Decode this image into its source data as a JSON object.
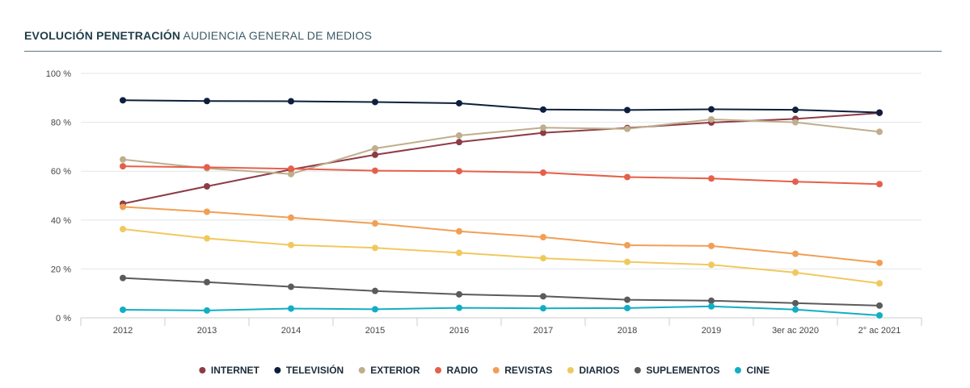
{
  "header": {
    "title_bold": "EVOLUCIÓN PENETRACIÓN",
    "title_light": "AUDIENCIA GENERAL DE MEDIOS"
  },
  "chart_data": {
    "type": "line",
    "categories": [
      "2012",
      "2013",
      "2014",
      "2015",
      "2016",
      "2017",
      "2018",
      "2019",
      "3er ac 2020",
      "2° ac 2021"
    ],
    "ylim": [
      0,
      100
    ],
    "y_ticks": [
      "0 %",
      "20 %",
      "40 %",
      "60 %",
      "80 %",
      "100 %"
    ],
    "grid": true,
    "legend_position": "bottom",
    "series": [
      {
        "name": "INTERNET",
        "color": "#8e3b46",
        "values": [
          46.7,
          53.8,
          60.7,
          66.7,
          71.9,
          75.7,
          77.7,
          79.9,
          81.4,
          83.8
        ]
      },
      {
        "name": "TELEVISIÓN",
        "color": "#0d1f3c",
        "values": [
          89.0,
          88.7,
          88.6,
          88.3,
          87.8,
          85.2,
          85.0,
          85.3,
          85.1,
          84.0
        ]
      },
      {
        "name": "EXTERIOR",
        "color": "#bfae8c",
        "values": [
          64.8,
          61.2,
          58.8,
          69.3,
          74.6,
          77.8,
          77.3,
          81.2,
          80.0,
          76.1
        ]
      },
      {
        "name": "RADIO",
        "color": "#e5604a",
        "values": [
          62.0,
          61.6,
          61.0,
          60.2,
          60.0,
          59.4,
          57.6,
          57.0,
          55.7,
          54.7
        ]
      },
      {
        "name": "REVISTAS",
        "color": "#f19f55",
        "values": [
          45.4,
          43.4,
          41.0,
          38.6,
          35.4,
          33.0,
          29.7,
          29.4,
          26.2,
          22.5
        ]
      },
      {
        "name": "DIARIOS",
        "color": "#f0c95d",
        "values": [
          36.3,
          32.5,
          29.8,
          28.6,
          26.6,
          24.4,
          22.9,
          21.7,
          18.5,
          14.1
        ]
      },
      {
        "name": "SUPLEMENTOS",
        "color": "#5b5b5b",
        "values": [
          16.3,
          14.6,
          12.7,
          11.0,
          9.6,
          8.8,
          7.4,
          7.0,
          6.0,
          5.0
        ]
      },
      {
        "name": "CINE",
        "color": "#12aec4",
        "values": [
          3.3,
          3.0,
          3.8,
          3.5,
          4.1,
          3.9,
          4.0,
          4.7,
          3.4,
          1.0
        ]
      }
    ]
  }
}
